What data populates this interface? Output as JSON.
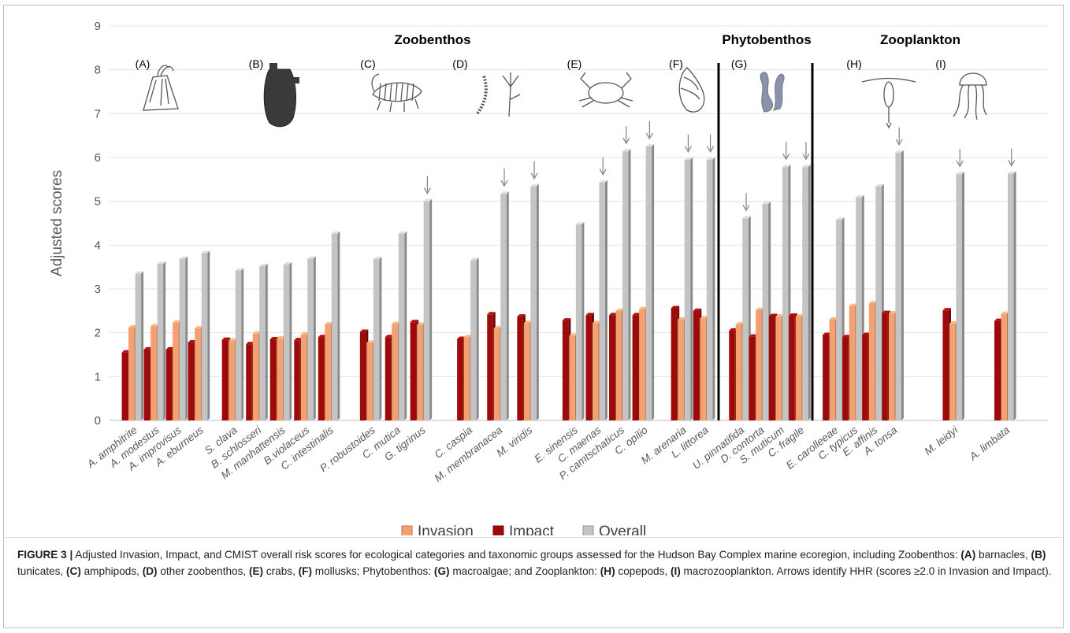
{
  "chart_data": {
    "type": "bar",
    "ylabel": "Adjusted scores",
    "ylim": [
      0,
      9
    ],
    "yticks": [
      "0",
      "1",
      "2",
      "3",
      "4",
      "5",
      "6",
      "7",
      "8",
      "9"
    ],
    "series_colors": {
      "Invasion": "#f4a070",
      "Impact": "#9e0a0a",
      "Overall": "#c4c4c4"
    },
    "legend": [
      "Invasion",
      "Impact",
      "Overall"
    ],
    "legend_position": "bottom",
    "group_headers": [
      "Zoobenthos",
      "Phytobenthos",
      "Zooplankton"
    ],
    "panels": [
      {
        "label": "(A)",
        "icon": "barnacle-icon",
        "species": [
          {
            "name": "A. amphitrite",
            "invasion": 2.12,
            "impact": 1.55,
            "overall": 3.35,
            "arrow": false
          },
          {
            "name": "A. modestus",
            "invasion": 2.15,
            "impact": 1.62,
            "overall": 3.57,
            "arrow": false
          },
          {
            "name": "A. improvisus",
            "invasion": 2.23,
            "impact": 1.62,
            "overall": 3.69,
            "arrow": false
          },
          {
            "name": "A. eburneus",
            "invasion": 2.1,
            "impact": 1.78,
            "overall": 3.82,
            "arrow": false
          }
        ]
      },
      {
        "label": "(B)",
        "icon": "tunicate-icon",
        "species": [
          {
            "name": "S. clava",
            "invasion": 1.82,
            "impact": 1.84,
            "overall": 3.42,
            "arrow": false
          },
          {
            "name": "B. schlosseri",
            "invasion": 1.98,
            "impact": 1.74,
            "overall": 3.52,
            "arrow": false
          },
          {
            "name": "M. manhattensis",
            "invasion": 1.87,
            "impact": 1.85,
            "overall": 3.56,
            "arrow": false
          },
          {
            "name": "B.violaceus",
            "invasion": 1.96,
            "impact": 1.83,
            "overall": 3.69,
            "arrow": false
          },
          {
            "name": "C. intestinalis",
            "invasion": 2.19,
            "impact": 1.9,
            "overall": 4.26,
            "arrow": false
          }
        ]
      },
      {
        "label": "(C)",
        "icon": "amphipod-icon",
        "species": [
          {
            "name": "P. robustoides",
            "invasion": 1.77,
            "impact": 2.02,
            "overall": 3.68,
            "arrow": false
          },
          {
            "name": "C. mutica",
            "invasion": 2.2,
            "impact": 1.9,
            "overall": 4.26,
            "arrow": false
          },
          {
            "name": "G. tigrinus",
            "invasion": 2.18,
            "impact": 2.24,
            "overall": 5.0,
            "arrow": true
          }
        ]
      },
      {
        "label": "(D)",
        "icon": "polychaete-hydroid-icon",
        "species": [
          {
            "name": "C. caspia",
            "invasion": 1.9,
            "impact": 1.86,
            "overall": 3.66,
            "arrow": false
          },
          {
            "name": "M. membranacea",
            "invasion": 2.1,
            "impact": 2.42,
            "overall": 5.17,
            "arrow": true
          },
          {
            "name": "M. viridis",
            "invasion": 2.22,
            "impact": 2.37,
            "overall": 5.34,
            "arrow": true
          }
        ]
      },
      {
        "label": "(E)",
        "icon": "crab-icon",
        "species": [
          {
            "name": "E. sinensis",
            "invasion": 1.93,
            "impact": 2.28,
            "overall": 4.47,
            "arrow": false
          },
          {
            "name": "C. maenas",
            "invasion": 2.22,
            "impact": 2.4,
            "overall": 5.43,
            "arrow": true
          },
          {
            "name": "P. camtschaticus",
            "invasion": 2.5,
            "impact": 2.4,
            "overall": 6.14,
            "arrow": true
          },
          {
            "name": "C. opilio",
            "invasion": 2.54,
            "impact": 2.4,
            "overall": 6.25,
            "arrow": true
          }
        ]
      },
      {
        "label": "(F)",
        "icon": "snail-icon",
        "species": [
          {
            "name": "M. arenaria",
            "invasion": 2.3,
            "impact": 2.56,
            "overall": 5.95,
            "arrow": true
          },
          {
            "name": "L. littorea",
            "invasion": 2.33,
            "impact": 2.5,
            "overall": 5.95,
            "arrow": true
          }
        ]
      },
      {
        "label": "(G)",
        "icon": "seaweed-icon",
        "species": [
          {
            "name": "U. pinnatifida",
            "invasion": 2.19,
            "impact": 2.05,
            "overall": 4.61,
            "arrow": true
          },
          {
            "name": "D. contorta",
            "invasion": 2.52,
            "impact": 1.91,
            "overall": 4.94,
            "arrow": false
          },
          {
            "name": "S. muticum",
            "invasion": 2.37,
            "impact": 2.38,
            "overall": 5.78,
            "arrow": true
          },
          {
            "name": "C. fragile",
            "invasion": 2.37,
            "impact": 2.39,
            "overall": 5.78,
            "arrow": true
          }
        ]
      },
      {
        "label": "(H)",
        "icon": "copepod-icon",
        "species": [
          {
            "name": "E. carolleeae",
            "invasion": 2.3,
            "impact": 1.95,
            "overall": 4.58,
            "arrow": false
          },
          {
            "name": "C. typicus",
            "invasion": 2.61,
            "impact": 1.9,
            "overall": 5.09,
            "arrow": false
          },
          {
            "name": "E. affinis",
            "invasion": 2.67,
            "impact": 1.95,
            "overall": 5.34,
            "arrow": false
          },
          {
            "name": "A. tonsa",
            "invasion": 2.44,
            "impact": 2.45,
            "overall": 6.11,
            "arrow": true
          }
        ]
      },
      {
        "label": "(I)",
        "icon": "jellyfish-icon",
        "species": [
          {
            "name": "M. leidyi",
            "invasion": 2.21,
            "impact": 2.51,
            "overall": 5.62,
            "arrow": true
          },
          {
            "name": "A. limbata",
            "invasion": 2.43,
            "impact": 2.27,
            "overall": 5.63,
            "arrow": true
          }
        ]
      }
    ]
  },
  "caption": {
    "lead": "FIGURE 3 |",
    "parts": [
      {
        "t": " Adjusted Invasion, Impact, and CMIST overall risk scores for ecological categories and taxonomic groups assessed for the Hudson Bay Complex marine ecoregion, including Zoobenthos: ",
        "b": false
      },
      {
        "t": "(A)",
        "b": true
      },
      {
        "t": " barnacles, ",
        "b": false
      },
      {
        "t": "(B)",
        "b": true
      },
      {
        "t": " tunicates, ",
        "b": false
      },
      {
        "t": "(C)",
        "b": true
      },
      {
        "t": " amphipods, ",
        "b": false
      },
      {
        "t": "(D)",
        "b": true
      },
      {
        "t": " other zoobenthos, ",
        "b": false
      },
      {
        "t": "(E)",
        "b": true
      },
      {
        "t": " crabs, ",
        "b": false
      },
      {
        "t": "(F)",
        "b": true
      },
      {
        "t": " mollusks; Phytobenthos: ",
        "b": false
      },
      {
        "t": "(G)",
        "b": true
      },
      {
        "t": " macroalgae; and Zooplankton: ",
        "b": false
      },
      {
        "t": "(H)",
        "b": true
      },
      {
        "t": " copepods, ",
        "b": false
      },
      {
        "t": "(I)",
        "b": true
      },
      {
        "t": " macrozooplankton. Arrows identify HHR (scores ≥2.0 in Invasion and Impact).",
        "b": false
      }
    ]
  }
}
